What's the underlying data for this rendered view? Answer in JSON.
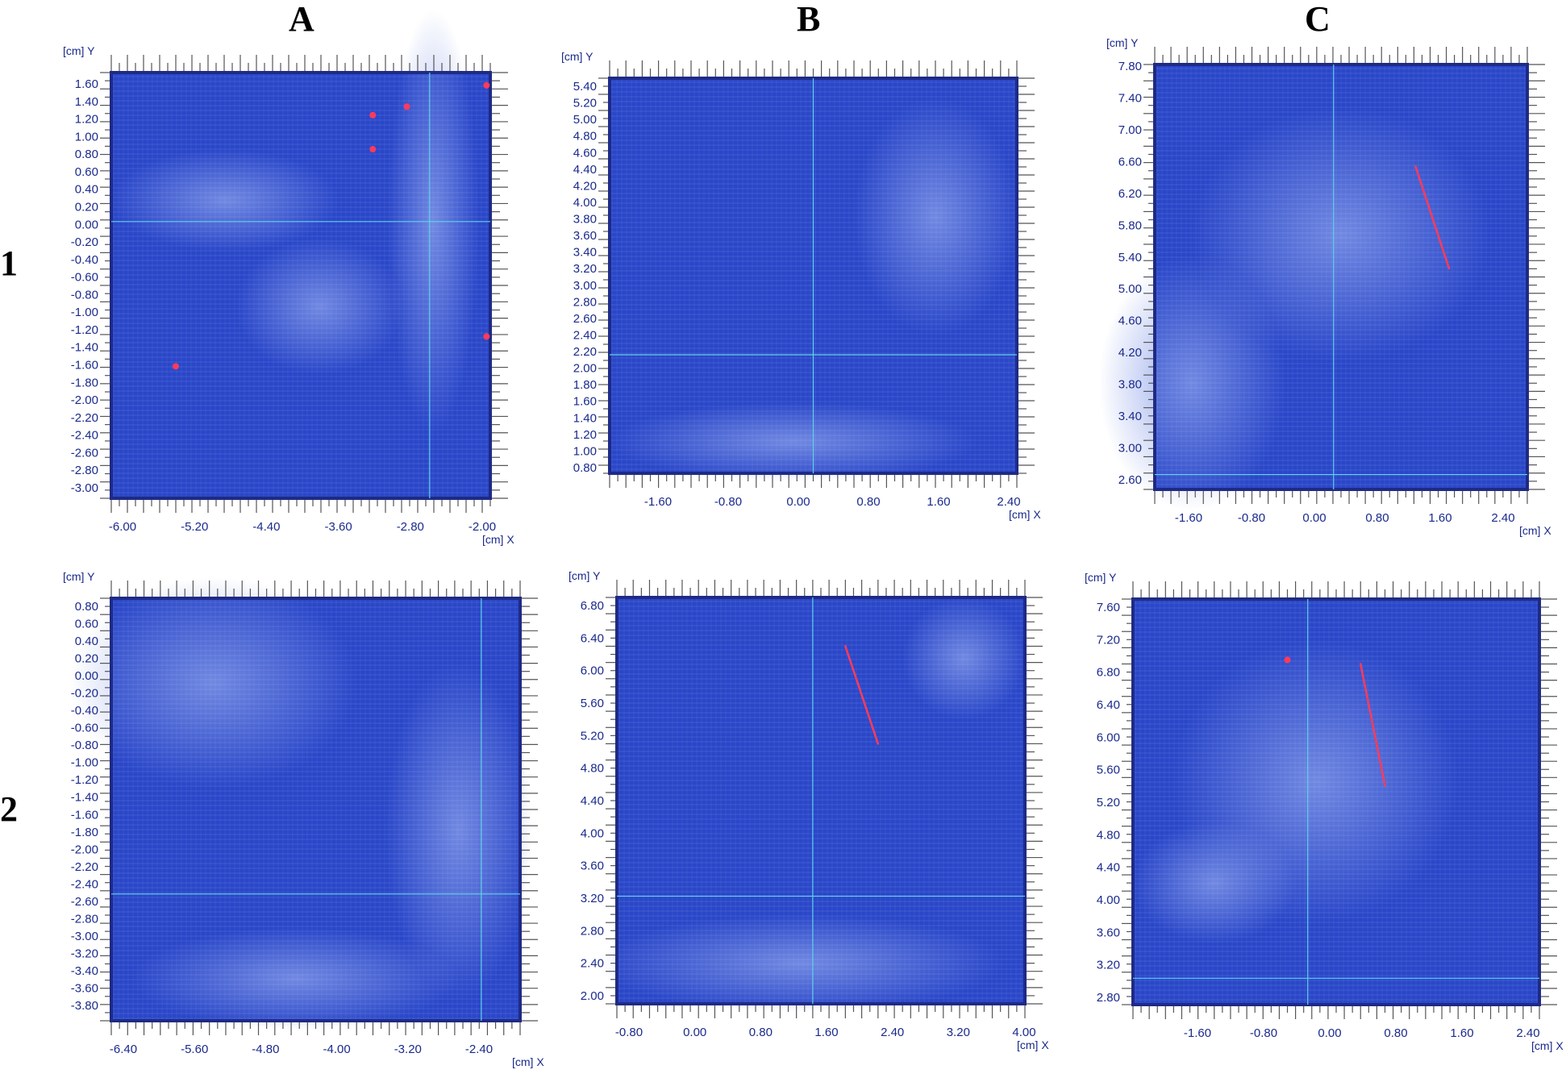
{
  "figure": {
    "column_labels": [
      "A",
      "B",
      "C"
    ],
    "row_labels": [
      "1",
      "2"
    ],
    "colors": {
      "scan_base": "#2a47c9",
      "scan_light": "#7d94e6",
      "scan_dark": "#1c2f9c",
      "frame": "#1e2a86",
      "axis_text": "#1a2a8c",
      "tick": "#555555",
      "crosshair": "#5fd3e8",
      "defect_red": "#ff3a5a"
    },
    "panels": [
      {
        "id": "1A",
        "x_unit_label": "[cm] X",
        "y_unit_label": "[cm] Y",
        "x_ticks": [
          "-6.00",
          "-5.20",
          "-4.40",
          "-3.60",
          "-2.80",
          "-2.00"
        ],
        "y_ticks": [
          "1.60",
          "1.40",
          "1.20",
          "1.00",
          "0.80",
          "0.60",
          "0.40",
          "0.20",
          "0.00",
          "-0.20",
          "-0.40",
          "-0.60",
          "-0.80",
          "-1.00",
          "-1.20",
          "-1.40",
          "-1.60",
          "-1.80",
          "-2.00",
          "-2.20",
          "-2.40",
          "-2.60",
          "-2.80",
          "-3.00"
        ]
      },
      {
        "id": "1B",
        "x_unit_label": "[cm] X",
        "y_unit_label": "[cm] Y",
        "x_ticks": [
          "-1.60",
          "-0.80",
          "0.00",
          "0.80",
          "1.60",
          "2.40"
        ],
        "y_ticks": [
          "5.40",
          "5.20",
          "5.00",
          "4.80",
          "4.60",
          "4.40",
          "4.20",
          "4.00",
          "3.80",
          "3.60",
          "3.40",
          "3.20",
          "3.00",
          "2.80",
          "2.60",
          "2.40",
          "2.20",
          "2.00",
          "1.80",
          "1.60",
          "1.40",
          "1.20",
          "1.00",
          "0.80"
        ]
      },
      {
        "id": "1C",
        "x_unit_label": "[cm] X",
        "y_unit_label": "[cm] Y",
        "x_ticks": [
          "-1.60",
          "-0.80",
          "0.00",
          "0.80",
          "1.60",
          "2.40"
        ],
        "y_ticks": [
          "7.80",
          "7.40",
          "7.00",
          "6.60",
          "6.20",
          "5.80",
          "5.40",
          "5.00",
          "4.60",
          "4.20",
          "3.80",
          "3.40",
          "3.00",
          "2.60"
        ]
      },
      {
        "id": "2A",
        "x_unit_label": "[cm] X",
        "y_unit_label": "[cm] Y",
        "x_ticks": [
          "-6.40",
          "-5.60",
          "-4.80",
          "-4.00",
          "-3.20",
          "-2.40"
        ],
        "y_ticks": [
          "0.80",
          "0.60",
          "0.40",
          "0.20",
          "0.00",
          "-0.20",
          "-0.40",
          "-0.60",
          "-0.80",
          "-1.00",
          "-1.20",
          "-1.40",
          "-1.60",
          "-1.80",
          "-2.00",
          "-2.20",
          "-2.40",
          "-2.60",
          "-2.80",
          "-3.00",
          "-3.20",
          "-3.40",
          "-3.60",
          "-3.80"
        ]
      },
      {
        "id": "2B",
        "x_unit_label": "[cm] X",
        "y_unit_label": "[cm] Y",
        "x_ticks": [
          "-0.80",
          "0.00",
          "0.80",
          "1.60",
          "2.40",
          "3.20",
          "4.00"
        ],
        "y_ticks": [
          "6.80",
          "6.40",
          "6.00",
          "5.60",
          "5.20",
          "4.80",
          "4.40",
          "4.00",
          "3.60",
          "3.20",
          "2.80",
          "2.40",
          "2.00"
        ]
      },
      {
        "id": "2C",
        "x_unit_label": "[cm] X",
        "y_unit_label": "[cm] Y",
        "x_ticks": [
          "-1.60",
          "-0.80",
          "0.00",
          "0.80",
          "1.60",
          "2.40"
        ],
        "y_ticks": [
          "7.60",
          "7.20",
          "6.80",
          "6.40",
          "6.00",
          "5.60",
          "5.20",
          "4.80",
          "4.40",
          "4.00",
          "3.60",
          "3.20",
          "2.80"
        ]
      }
    ]
  }
}
